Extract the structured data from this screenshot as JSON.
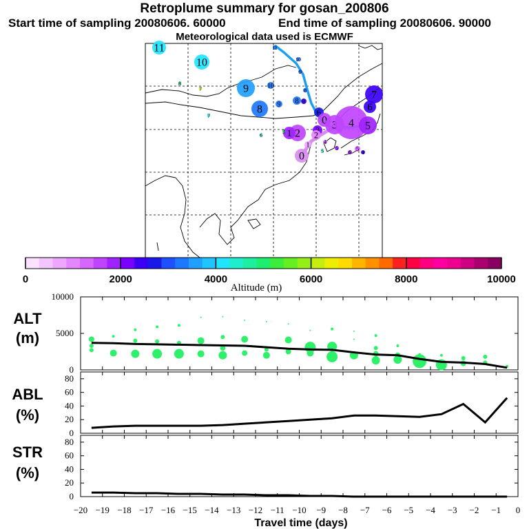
{
  "title": "Retroplume summary for gosan_200806",
  "start_label": "Start time of sampling 20080606. 60000",
  "end_label": "End time of sampling 20080606. 90000",
  "met_label": "Meteorological data used is ECMWF",
  "colorbar": {
    "label": "Altitude (m)",
    "ticks": [
      "0",
      "2000",
      "4000",
      "6000",
      "8000",
      "10000"
    ],
    "colors": [
      "#fbe3ff",
      "#f5c5ff",
      "#eea6ff",
      "#e486ff",
      "#d566ff",
      "#c044ff",
      "#a022ff",
      "#7a00ff",
      "#3a00f5",
      "#1a1ae8",
      "#1e50ff",
      "#1e78ff",
      "#1fa0ff",
      "#20c4ff",
      "#22e4ff",
      "#1eeecc",
      "#1eeea0",
      "#1eee6e",
      "#3aee3a",
      "#66ee22",
      "#96ee18",
      "#c4ee10",
      "#eeee00",
      "#ffdc00",
      "#ffb400",
      "#ff9000",
      "#ff6a00",
      "#ff2020",
      "#ff0044",
      "#ff0080",
      "#ff00a0",
      "#ee0090",
      "#cc0080",
      "#aa0070",
      "#880060"
    ]
  },
  "map_labels": {
    "days": [
      "0",
      "1",
      "2",
      "3",
      "4",
      "5",
      "6",
      "7",
      "8",
      "9",
      "10",
      "11"
    ]
  },
  "chart_data": [
    {
      "name": "ALT",
      "type": "line",
      "ylabel": "ALT",
      "yunit": "(m)",
      "ylim": [
        0,
        10000
      ],
      "yticks": [
        "0",
        "5000",
        "10000"
      ],
      "x": [
        -19.5,
        -18.5,
        -17.5,
        -16.5,
        -15.5,
        -14.5,
        -13.5,
        -12.5,
        -11.5,
        -10.5,
        -9.5,
        -8.5,
        -7.5,
        -6.5,
        -5.5,
        -4.5,
        -3.5,
        -2.5,
        -1.5,
        -0.5
      ],
      "values": [
        3700,
        3650,
        3550,
        3500,
        3450,
        3400,
        3350,
        3300,
        3100,
        2900,
        2800,
        2750,
        2400,
        2100,
        2000,
        1500,
        1100,
        1000,
        800,
        300
      ],
      "markers": [
        [
          -19.5,
          4200,
          4
        ],
        [
          -19.5,
          3300,
          3
        ],
        [
          -19.5,
          2700,
          3
        ],
        [
          -18.5,
          4600,
          2
        ],
        [
          -18.5,
          2300,
          5
        ],
        [
          -17.5,
          5500,
          2
        ],
        [
          -17.5,
          4000,
          3
        ],
        [
          -17.5,
          2200,
          6
        ],
        [
          -16.5,
          5900,
          2
        ],
        [
          -16.5,
          3900,
          3
        ],
        [
          -16.5,
          2200,
          7
        ],
        [
          -15.5,
          6100,
          2
        ],
        [
          -15.5,
          3700,
          3
        ],
        [
          -15.5,
          2200,
          7
        ],
        [
          -14.5,
          7200,
          1
        ],
        [
          -14.5,
          4000,
          5
        ],
        [
          -14.5,
          2200,
          5
        ],
        [
          -13.5,
          7300,
          1
        ],
        [
          -13.5,
          4500,
          3
        ],
        [
          -13.5,
          3000,
          4
        ],
        [
          -13.5,
          2000,
          6
        ],
        [
          -12.5,
          6800,
          1
        ],
        [
          -12.5,
          4200,
          5
        ],
        [
          -12.5,
          2300,
          4
        ],
        [
          -11.5,
          6600,
          1
        ],
        [
          -11.5,
          2800,
          3
        ],
        [
          -11.5,
          2000,
          5
        ],
        [
          -10.5,
          6300,
          1
        ],
        [
          -10.5,
          4100,
          5
        ],
        [
          -10.5,
          2500,
          4
        ],
        [
          -9.5,
          5400,
          1
        ],
        [
          -9.5,
          3100,
          8
        ],
        [
          -9.5,
          2300,
          5
        ],
        [
          -8.5,
          5600,
          2
        ],
        [
          -8.5,
          3200,
          7
        ],
        [
          -8.5,
          1800,
          8
        ],
        [
          -7.5,
          5300,
          1
        ],
        [
          -7.5,
          4200,
          1
        ],
        [
          -7.5,
          2000,
          6
        ],
        [
          -6.5,
          4700,
          2
        ],
        [
          -6.5,
          3000,
          3
        ],
        [
          -6.5,
          2200,
          4
        ],
        [
          -6.5,
          1300,
          6
        ],
        [
          -5.5,
          3300,
          2
        ],
        [
          -5.5,
          2000,
          4
        ],
        [
          -5.5,
          1400,
          6
        ],
        [
          -4.5,
          2100,
          2
        ],
        [
          -4.5,
          1200,
          10
        ],
        [
          -3.5,
          2000,
          2
        ],
        [
          -3.5,
          700,
          8
        ],
        [
          -2.5,
          1600,
          3
        ],
        [
          -2.5,
          900,
          4
        ],
        [
          -1.5,
          1800,
          3
        ],
        [
          -1.5,
          1000,
          3
        ],
        [
          -0.5,
          500,
          2
        ]
      ]
    },
    {
      "name": "ABL",
      "type": "line",
      "ylabel": "ABL",
      "yunit": "(%)",
      "ylim": [
        0,
        90
      ],
      "yticks": [
        "0",
        "20",
        "40",
        "60",
        "80"
      ],
      "x": [
        -19.5,
        -18.5,
        -17.5,
        -16.5,
        -15.5,
        -14.5,
        -13.5,
        -12.5,
        -11.5,
        -10.5,
        -9.5,
        -8.5,
        -7.5,
        -6.5,
        -5.5,
        -4.5,
        -3.5,
        -2.5,
        -1.5,
        -0.5
      ],
      "values": [
        8,
        10,
        11,
        11,
        11,
        11,
        12,
        14,
        16,
        18,
        20,
        22,
        26,
        26,
        25,
        24,
        28,
        43,
        16,
        52
      ]
    },
    {
      "name": "STR",
      "type": "line",
      "ylabel": "STR",
      "yunit": "(%)",
      "ylim": [
        0,
        90
      ],
      "yticks": [
        "0",
        "20",
        "40",
        "60",
        "80"
      ],
      "x": [
        -19.5,
        -18.5,
        -17.5,
        -16.5,
        -15.5,
        -14.5,
        -13.5,
        -12.5,
        -11.5,
        -10.5,
        -9.5,
        -8.5,
        -7.5,
        -6.5,
        -5.5,
        -4.5,
        -3.5,
        -2.5,
        -1.5,
        -0.5
      ],
      "values": [
        6,
        6,
        5,
        5,
        4,
        4,
        3,
        3,
        2,
        2,
        1,
        1,
        0,
        0,
        0,
        0,
        0,
        0,
        0,
        0
      ]
    }
  ],
  "xaxis": {
    "label": "Travel time (days)",
    "xlim": [
      -20,
      0
    ],
    "ticks": [
      "−20",
      "−19",
      "−18",
      "−17",
      "−16",
      "−15",
      "−14",
      "−13",
      "−12",
      "−11",
      "−10",
      "−9",
      "−8",
      "−7",
      "−6",
      "−5",
      "−4",
      "−3",
      "−2",
      "−1",
      "0"
    ]
  }
}
